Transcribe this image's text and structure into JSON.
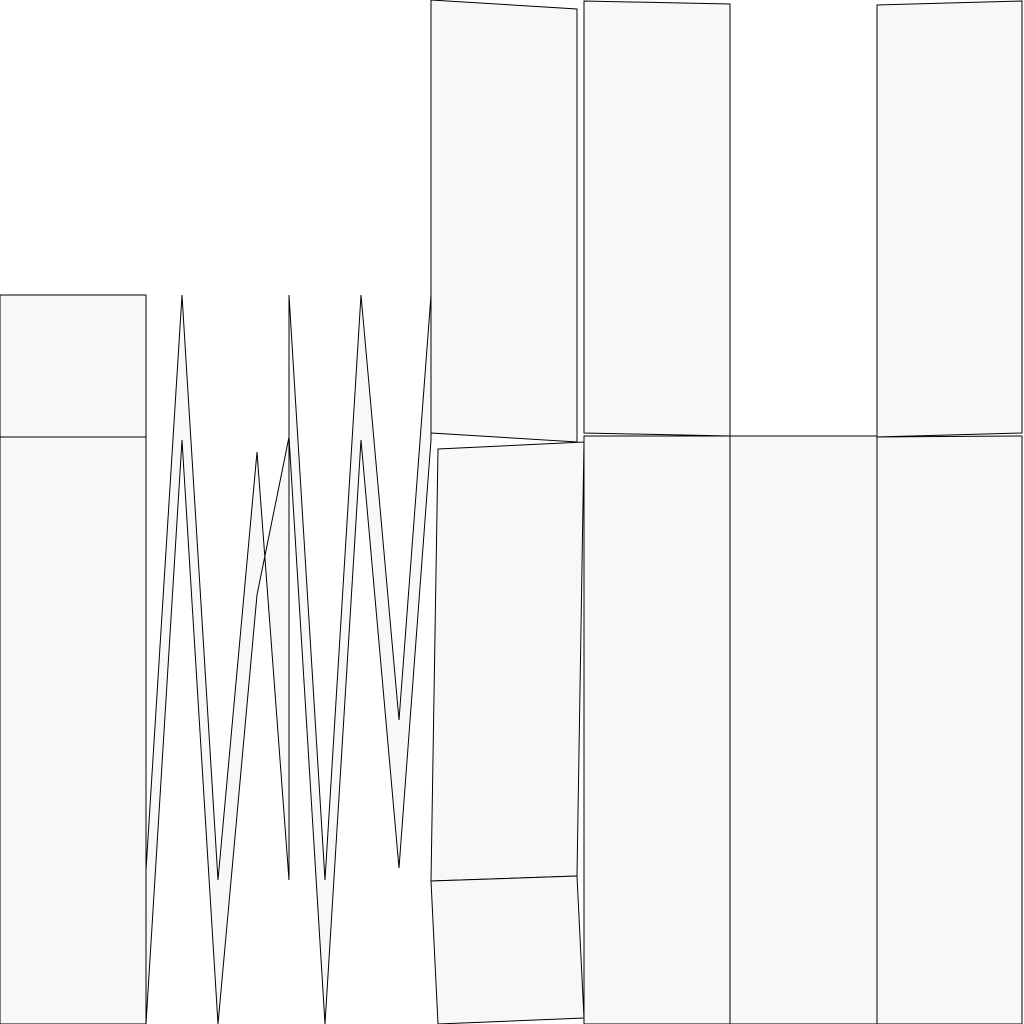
{
  "canvas": {
    "background": "#ffffff",
    "fill": "#f8f8f8",
    "stroke": "#000000"
  },
  "pieces": [
    {
      "name": "left-panel-top"
    },
    {
      "name": "left-panel-bottom"
    },
    {
      "name": "zigzag-strip"
    },
    {
      "name": "center-panel-top"
    },
    {
      "name": "center-panel-bottom"
    },
    {
      "name": "center-panel-footer"
    },
    {
      "name": "column-2-top"
    },
    {
      "name": "column-2-bottom"
    },
    {
      "name": "column-3-bottom"
    },
    {
      "name": "column-4-top"
    },
    {
      "name": "column-4-bottom"
    }
  ]
}
